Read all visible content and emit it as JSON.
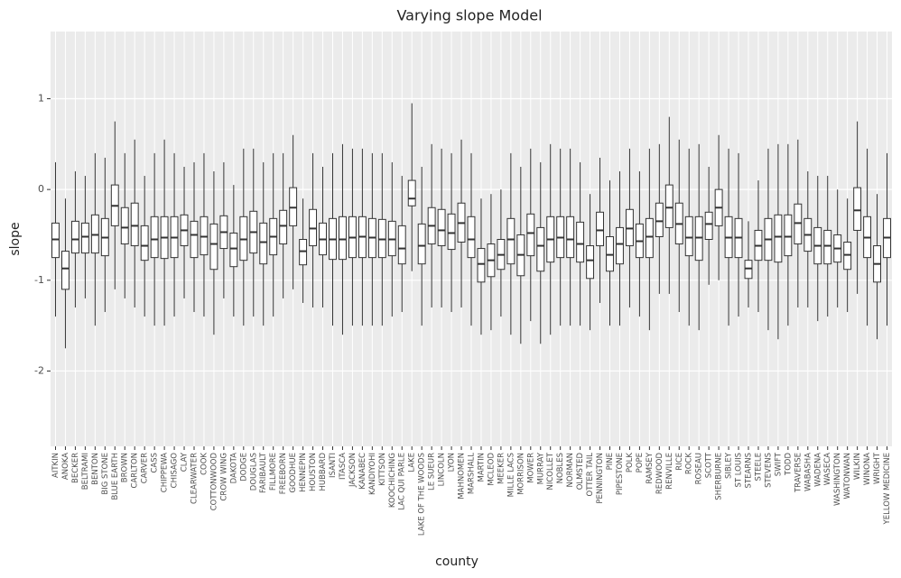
{
  "chart_data": {
    "type": "box",
    "title": "Varying slope Model",
    "x_label": "county",
    "y_label": "slope",
    "categories": [
      "AITKIN",
      "ANOKA",
      "BECKER",
      "BELTRAMI",
      "BENTON",
      "BIG STONE",
      "BLUE EARTH",
      "BROWN",
      "CARLTON",
      "CARVER",
      "CASS",
      "CHIPPEWA",
      "CHISAGO",
      "CLAY",
      "CLEARWATER",
      "COOK",
      "COTTONWOOD",
      "CROW WING",
      "DAKOTA",
      "DODGE",
      "DOUGLAS",
      "FARIBAULT",
      "FILLMORE",
      "FREEBORN",
      "GOODHUE",
      "HENNEPIN",
      "HOUSTON",
      "HUBBARD",
      "ISANTI",
      "ITASCA",
      "JACKSON",
      "KANABEC",
      "KANDIYOHI",
      "KITTSON",
      "KOOCHICHING",
      "LAC QUI PARLE",
      "LAKE",
      "LAKE OF THE WOODS",
      "LE SUEUR",
      "LINCOLN",
      "LYON",
      "MAHNOMEN",
      "MARSHALL",
      "MARTIN",
      "MCLEOD",
      "MEEKER",
      "MILLE LACS",
      "MORRISON",
      "MOWER",
      "MURRAY",
      "NICOLLET",
      "NOBLES",
      "NORMAN",
      "OLMSTED",
      "OTTER TAIL",
      "PENNINGTON",
      "PINE",
      "PIPESTONE",
      "POLK",
      "POPE",
      "RAMSEY",
      "REDWOOD",
      "RENVILLE",
      "RICE",
      "ROCK",
      "ROSEAU",
      "SCOTT",
      "SHERBURNE",
      "SIBLEY",
      "ST LOUIS",
      "STEARNS",
      "STEELE",
      "STEVENS",
      "SWIFT",
      "TODD",
      "TRAVERSE",
      "WABASHA",
      "WADENA",
      "WASECA",
      "WASHINGTON",
      "WATONWAN",
      "WILKIN",
      "WINONA",
      "WRIGHT",
      "YELLOW MEDICINE"
    ],
    "low": [
      -1.4,
      -1.75,
      -1.3,
      -1.2,
      -1.5,
      -1.35,
      -1.1,
      -1.2,
      -1.3,
      -1.4,
      -1.5,
      -1.5,
      -1.4,
      -1.2,
      -1.35,
      -1.4,
      -1.6,
      -1.2,
      -1.4,
      -1.5,
      -1.4,
      -1.5,
      -1.4,
      -1.2,
      -1.1,
      -1.25,
      -1.3,
      -1.3,
      -1.5,
      -1.6,
      -1.5,
      -1.5,
      -1.5,
      -1.5,
      -1.4,
      -1.35,
      -0.9,
      -1.5,
      -1.3,
      -1.3,
      -1.35,
      -1.3,
      -1.5,
      -1.6,
      -1.55,
      -1.4,
      -1.6,
      -1.7,
      -1.45,
      -1.7,
      -1.6,
      -1.5,
      -1.5,
      -1.5,
      -1.55,
      -1.25,
      -1.5,
      -1.5,
      -1.3,
      -1.4,
      -1.55,
      -1.15,
      -1.15,
      -1.35,
      -1.5,
      -1.55,
      -1.05,
      -1.0,
      -1.5,
      -1.4,
      -1.3,
      -1.35,
      -1.55,
      -1.65,
      -1.5,
      -1.3,
      -1.3,
      -1.45,
      -1.4,
      -1.3,
      -1.35,
      -1.15,
      -1.5,
      -1.65,
      -1.5
    ],
    "q1": [
      -0.75,
      -1.1,
      -0.7,
      -0.7,
      -0.7,
      -0.73,
      -0.4,
      -0.6,
      -0.62,
      -0.78,
      -0.75,
      -0.76,
      -0.75,
      -0.62,
      -0.75,
      -0.72,
      -0.88,
      -0.65,
      -0.85,
      -0.78,
      -0.7,
      -0.82,
      -0.72,
      -0.6,
      -0.4,
      -0.83,
      -0.62,
      -0.72,
      -0.77,
      -0.77,
      -0.75,
      -0.75,
      -0.75,
      -0.75,
      -0.73,
      -0.82,
      -0.18,
      -0.82,
      -0.6,
      -0.62,
      -0.66,
      -0.58,
      -0.75,
      -1.02,
      -0.96,
      -0.88,
      -0.82,
      -0.95,
      -0.73,
      -0.9,
      -0.8,
      -0.75,
      -0.75,
      -0.8,
      -0.98,
      -0.62,
      -0.9,
      -0.82,
      -0.62,
      -0.75,
      -0.75,
      -0.52,
      -0.42,
      -0.6,
      -0.73,
      -0.78,
      -0.55,
      -0.4,
      -0.75,
      -0.75,
      -0.98,
      -0.78,
      -0.78,
      -0.8,
      -0.73,
      -0.6,
      -0.68,
      -0.82,
      -0.82,
      -0.8,
      -0.88,
      -0.45,
      -0.75,
      -1.02,
      -0.75
    ],
    "median": [
      -0.55,
      -0.87,
      -0.55,
      -0.52,
      -0.5,
      -0.53,
      -0.18,
      -0.42,
      -0.4,
      -0.62,
      -0.55,
      -0.53,
      -0.53,
      -0.45,
      -0.5,
      -0.52,
      -0.6,
      -0.47,
      -0.65,
      -0.55,
      -0.47,
      -0.58,
      -0.52,
      -0.4,
      -0.2,
      -0.68,
      -0.43,
      -0.55,
      -0.55,
      -0.55,
      -0.53,
      -0.52,
      -0.53,
      -0.55,
      -0.55,
      -0.65,
      -0.1,
      -0.62,
      -0.4,
      -0.45,
      -0.48,
      -0.37,
      -0.55,
      -0.82,
      -0.78,
      -0.72,
      -0.55,
      -0.72,
      -0.48,
      -0.62,
      -0.55,
      -0.53,
      -0.55,
      -0.6,
      -0.78,
      -0.45,
      -0.72,
      -0.6,
      -0.43,
      -0.57,
      -0.52,
      -0.35,
      -0.2,
      -0.38,
      -0.53,
      -0.53,
      -0.38,
      -0.2,
      -0.53,
      -0.53,
      -0.87,
      -0.62,
      -0.55,
      -0.52,
      -0.52,
      -0.37,
      -0.5,
      -0.62,
      -0.62,
      -0.65,
      -0.72,
      -0.23,
      -0.53,
      -0.82,
      -0.53
    ],
    "q3": [
      -0.37,
      -0.68,
      -0.35,
      -0.37,
      -0.28,
      -0.32,
      0.05,
      -0.2,
      -0.15,
      -0.4,
      -0.3,
      -0.3,
      -0.3,
      -0.28,
      -0.35,
      -0.3,
      -0.38,
      -0.29,
      -0.48,
      -0.3,
      -0.24,
      -0.37,
      -0.32,
      -0.23,
      0.02,
      -0.55,
      -0.22,
      -0.37,
      -0.32,
      -0.3,
      -0.3,
      -0.3,
      -0.32,
      -0.33,
      -0.35,
      -0.4,
      0.1,
      -0.38,
      -0.2,
      -0.22,
      -0.27,
      -0.15,
      -0.3,
      -0.65,
      -0.6,
      -0.55,
      -0.32,
      -0.5,
      -0.27,
      -0.42,
      -0.3,
      -0.3,
      -0.3,
      -0.36,
      -0.62,
      -0.25,
      -0.52,
      -0.42,
      -0.22,
      -0.38,
      -0.32,
      -0.15,
      0.05,
      -0.15,
      -0.3,
      -0.3,
      -0.25,
      0.0,
      -0.3,
      -0.32,
      -0.78,
      -0.45,
      -0.32,
      -0.28,
      -0.28,
      -0.16,
      -0.32,
      -0.42,
      -0.45,
      -0.5,
      -0.58,
      0.02,
      -0.3,
      -0.62,
      -0.32
    ],
    "high": [
      0.3,
      -0.1,
      0.2,
      0.15,
      0.4,
      0.35,
      0.75,
      0.4,
      0.55,
      0.15,
      0.4,
      0.55,
      0.4,
      0.25,
      0.3,
      0.4,
      0.2,
      0.3,
      0.05,
      0.45,
      0.45,
      0.3,
      0.4,
      0.4,
      0.6,
      -0.1,
      0.4,
      0.25,
      0.4,
      0.5,
      0.45,
      0.45,
      0.4,
      0.4,
      0.3,
      0.15,
      0.95,
      0.25,
      0.5,
      0.45,
      0.4,
      0.55,
      0.4,
      -0.1,
      -0.05,
      0.0,
      0.4,
      0.25,
      0.45,
      0.3,
      0.5,
      0.45,
      0.45,
      0.3,
      -0.05,
      0.35,
      0.1,
      0.2,
      0.45,
      0.2,
      0.45,
      0.5,
      0.8,
      0.55,
      0.45,
      0.5,
      0.25,
      0.6,
      0.45,
      0.4,
      -0.35,
      0.1,
      0.45,
      0.5,
      0.5,
      0.55,
      0.2,
      0.15,
      0.15,
      0.0,
      -0.1,
      0.75,
      0.45,
      -0.05,
      0.4
    ],
    "ylim": [
      -2.83,
      1.74
    ],
    "yticks": [
      -2,
      -1,
      0,
      1
    ],
    "grid": true,
    "color": "#ffffff"
  }
}
